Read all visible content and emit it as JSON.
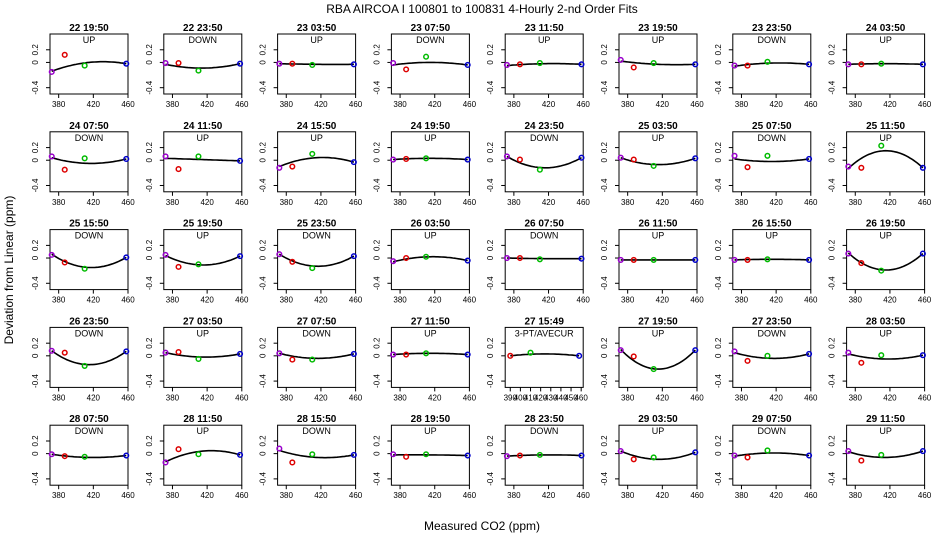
{
  "chart_data": {
    "type": "scatter",
    "title": "RBA   AIRCOA I   100801 to 100831   4-Hourly 2-nd Order Fits",
    "xlabel": "Measured CO2 (ppm)",
    "ylabel": "Deviation from Linear (ppm)",
    "xlim": [
      370,
      460
    ],
    "ylim": [
      -0.5,
      0.45
    ],
    "xticks": [
      380,
      420,
      460
    ],
    "yticks": [
      -0.4,
      0,
      0.2
    ],
    "ytick_labels": [
      "-0.4",
      "0",
      "0.2"
    ],
    "marker_colors": [
      "#9900cc",
      "#dd0000",
      "#00bb00",
      "#0000cc"
    ],
    "panels": [
      {
        "title": "22 19:50",
        "label": "UP",
        "x": [
          372,
          387,
          410,
          458
        ],
        "y": [
          -0.15,
          0.12,
          -0.05,
          -0.02
        ],
        "curve": [
          -0.14,
          0.0,
          -0.02
        ]
      },
      {
        "title": "22 23:50",
        "label": "DOWN",
        "x": [
          372,
          387,
          410,
          458
        ],
        "y": [
          -0.01,
          -0.01,
          -0.13,
          -0.02
        ],
        "curve": [
          -0.03,
          -0.09,
          -0.02
        ]
      },
      {
        "title": "23 03:50",
        "label": "UP",
        "x": [
          372,
          387,
          410,
          458
        ],
        "y": [
          -0.02,
          -0.02,
          -0.04,
          -0.03
        ],
        "curve": [
          -0.02,
          -0.03,
          -0.03
        ]
      },
      {
        "title": "23 07:50",
        "label": "DOWN",
        "x": [
          372,
          387,
          410,
          458
        ],
        "y": [
          -0.01,
          -0.11,
          0.09,
          -0.04
        ],
        "curve": [
          -0.04,
          0.0,
          -0.04
        ]
      },
      {
        "title": "23 11:50",
        "label": "UP",
        "x": [
          372,
          387,
          410,
          458
        ],
        "y": [
          -0.04,
          -0.03,
          -0.01,
          -0.03
        ],
        "curve": [
          -0.05,
          -0.02,
          -0.03
        ]
      },
      {
        "title": "23 19:50",
        "label": "UP",
        "x": [
          372,
          387,
          410,
          458
        ],
        "y": [
          0.04,
          -0.08,
          -0.01,
          -0.03
        ],
        "curve": [
          0.02,
          -0.03,
          -0.03
        ]
      },
      {
        "title": "23 23:50",
        "label": "DOWN",
        "x": [
          372,
          387,
          410,
          458
        ],
        "y": [
          -0.05,
          -0.05,
          0.01,
          -0.03
        ],
        "curve": [
          -0.06,
          -0.01,
          -0.03
        ]
      },
      {
        "title": "24 03:50",
        "label": "UP",
        "x": [
          372,
          387,
          410,
          458
        ],
        "y": [
          -0.03,
          -0.03,
          -0.02,
          -0.03
        ],
        "curve": [
          -0.03,
          -0.02,
          -0.03
        ]
      },
      {
        "title": "24 07:50",
        "label": "DOWN",
        "x": [
          372,
          387,
          410,
          458
        ],
        "y": [
          0.06,
          -0.15,
          0.03,
          0.02
        ],
        "curve": [
          0.04,
          -0.05,
          0.02
        ]
      },
      {
        "title": "24 11:50",
        "label": "UP",
        "x": [
          372,
          387,
          410,
          458
        ],
        "y": [
          0.06,
          -0.14,
          0.06,
          -0.01
        ],
        "curve": [
          0.03,
          0.01,
          -0.01
        ]
      },
      {
        "title": "24 15:50",
        "label": "UP",
        "x": [
          372,
          387,
          410,
          458
        ],
        "y": [
          -0.12,
          -0.1,
          0.1,
          -0.03
        ],
        "curve": [
          -0.1,
          0.04,
          -0.03
        ]
      },
      {
        "title": "24 19:50",
        "label": "UP",
        "x": [
          372,
          387,
          410,
          458
        ],
        "y": [
          0.01,
          0.02,
          0.03,
          0.01
        ],
        "curve": [
          0.01,
          0.03,
          0.01
        ]
      },
      {
        "title": "24 23:50",
        "label": "DOWN",
        "x": [
          372,
          387,
          410,
          458
        ],
        "y": [
          0.06,
          0.01,
          -0.15,
          0.04
        ],
        "curve": [
          0.06,
          -0.12,
          0.04
        ]
      },
      {
        "title": "25 03:50",
        "label": "UP",
        "x": [
          372,
          387,
          410,
          458
        ],
        "y": [
          0.04,
          0.01,
          -0.09,
          0.03
        ],
        "curve": [
          0.04,
          -0.07,
          0.03
        ]
      },
      {
        "title": "25 07:50",
        "label": "DOWN",
        "x": [
          372,
          387,
          410,
          458
        ],
        "y": [
          0.07,
          -0.11,
          0.07,
          0.02
        ],
        "curve": [
          0.02,
          -0.02,
          0.02
        ]
      },
      {
        "title": "25 11:50",
        "label": "UP",
        "x": [
          372,
          387,
          410,
          458
        ],
        "y": [
          -0.1,
          -0.12,
          0.23,
          -0.12
        ],
        "curve": [
          -0.13,
          0.15,
          -0.12
        ]
      },
      {
        "title": "25 15:50",
        "label": "DOWN",
        "x": [
          372,
          387,
          410,
          458
        ],
        "y": [
          0.05,
          -0.07,
          -0.17,
          0.01
        ],
        "curve": [
          0.06,
          -0.15,
          0.01
        ]
      },
      {
        "title": "25 19:50",
        "label": "UP",
        "x": [
          372,
          387,
          410,
          458
        ],
        "y": [
          0.05,
          -0.14,
          -0.1,
          0.03
        ],
        "curve": [
          0.04,
          -0.11,
          0.03
        ]
      },
      {
        "title": "25 23:50",
        "label": "DOWN",
        "x": [
          372,
          387,
          410,
          458
        ],
        "y": [
          0.06,
          -0.06,
          -0.16,
          0.03
        ],
        "curve": [
          0.06,
          -0.13,
          0.03
        ]
      },
      {
        "title": "26 03:50",
        "label": "UP",
        "x": [
          372,
          387,
          410,
          458
        ],
        "y": [
          -0.05,
          0.0,
          0.02,
          -0.04
        ],
        "curve": [
          -0.06,
          0.02,
          -0.04
        ]
      },
      {
        "title": "26 07:50",
        "label": "DOWN",
        "x": [
          372,
          387,
          410,
          458
        ],
        "y": [
          0.0,
          0.0,
          -0.02,
          -0.01
        ],
        "curve": [
          0.0,
          -0.01,
          -0.01
        ]
      },
      {
        "title": "26 11:50",
        "label": "UP",
        "x": [
          372,
          387,
          410,
          458
        ],
        "y": [
          -0.03,
          -0.03,
          -0.03,
          -0.03
        ],
        "curve": [
          -0.03,
          -0.03,
          -0.03
        ]
      },
      {
        "title": "26 15:50",
        "label": "UP",
        "x": [
          372,
          387,
          410,
          458
        ],
        "y": [
          -0.03,
          -0.03,
          -0.02,
          -0.03
        ],
        "curve": [
          -0.03,
          -0.02,
          -0.03
        ]
      },
      {
        "title": "26 19:50",
        "label": "UP",
        "x": [
          372,
          387,
          410,
          458
        ],
        "y": [
          0.07,
          -0.08,
          -0.2,
          0.07
        ],
        "curve": [
          0.08,
          -0.19,
          0.07
        ]
      },
      {
        "title": "26 23:50",
        "label": "DOWN",
        "x": [
          372,
          387,
          410,
          458
        ],
        "y": [
          0.08,
          0.05,
          -0.16,
          0.07
        ],
        "curve": [
          0.08,
          -0.14,
          0.07
        ]
      },
      {
        "title": "27 03:50",
        "label": "UP",
        "x": [
          372,
          387,
          410,
          458
        ],
        "y": [
          0.05,
          0.06,
          -0.05,
          0.03
        ],
        "curve": [
          0.05,
          -0.02,
          0.03
        ]
      },
      {
        "title": "27 07:50",
        "label": "DOWN",
        "x": [
          372,
          387,
          410,
          458
        ],
        "y": [
          0.04,
          -0.06,
          -0.06,
          0.03
        ],
        "curve": [
          0.04,
          -0.04,
          0.03
        ]
      },
      {
        "title": "27 11:50",
        "label": "UP",
        "x": [
          372,
          387,
          410,
          458
        ],
        "y": [
          0.02,
          0.02,
          0.04,
          0.02
        ],
        "curve": [
          0.02,
          0.04,
          0.02
        ]
      },
      {
        "title": "27 15:49",
        "label": "3-PT/AVECUR",
        "x": [
          390,
          410,
          458
        ],
        "y": [
          0.0,
          0.05,
          0.0
        ],
        "curve": [
          0.0,
          0.03,
          0.0
        ],
        "xlim": [
          385,
          462
        ],
        "xticks": [
          390,
          400,
          410,
          420,
          430,
          440,
          450,
          460
        ]
      },
      {
        "title": "27 19:50",
        "label": "UP",
        "x": [
          372,
          387,
          410,
          458
        ],
        "y": [
          0.09,
          -0.01,
          -0.21,
          0.09
        ],
        "curve": [
          0.1,
          -0.21,
          0.09
        ]
      },
      {
        "title": "27 23:50",
        "label": "DOWN",
        "x": [
          372,
          387,
          410,
          458
        ],
        "y": [
          0.07,
          -0.08,
          0.0,
          0.03
        ],
        "curve": [
          0.05,
          -0.04,
          0.03
        ]
      },
      {
        "title": "28 03:50",
        "label": "UP",
        "x": [
          372,
          387,
          410,
          458
        ],
        "y": [
          0.05,
          -0.11,
          0.01,
          0.01
        ],
        "curve": [
          0.03,
          -0.05,
          0.01
        ]
      },
      {
        "title": "28 07:50",
        "label": "DOWN",
        "x": [
          372,
          387,
          410,
          458
        ],
        "y": [
          -0.01,
          -0.04,
          -0.05,
          -0.03
        ],
        "curve": [
          -0.01,
          -0.06,
          -0.03
        ]
      },
      {
        "title": "28 11:50",
        "label": "UP",
        "x": [
          372,
          387,
          410,
          458
        ],
        "y": [
          -0.14,
          0.07,
          -0.01,
          -0.02
        ],
        "curve": [
          -0.13,
          0.04,
          -0.02
        ]
      },
      {
        "title": "28 15:50",
        "label": "DOWN",
        "x": [
          372,
          387,
          410,
          458
        ],
        "y": [
          0.08,
          -0.14,
          -0.01,
          -0.02
        ],
        "curve": [
          0.05,
          -0.06,
          -0.02
        ]
      },
      {
        "title": "28 19:50",
        "label": "UP",
        "x": [
          372,
          387,
          410,
          458
        ],
        "y": [
          -0.01,
          -0.05,
          -0.01,
          -0.03
        ],
        "curve": [
          -0.02,
          -0.02,
          -0.03
        ]
      },
      {
        "title": "28 23:50",
        "label": "DOWN",
        "x": [
          372,
          387,
          410,
          458
        ],
        "y": [
          -0.04,
          -0.03,
          -0.02,
          -0.03
        ],
        "curve": [
          -0.04,
          -0.02,
          -0.03
        ]
      },
      {
        "title": "29 03:50",
        "label": "UP",
        "x": [
          372,
          387,
          410,
          458
        ],
        "y": [
          0.04,
          -0.09,
          -0.06,
          0.02
        ],
        "curve": [
          0.04,
          -0.09,
          0.02
        ]
      },
      {
        "title": "29 07:50",
        "label": "DOWN",
        "x": [
          372,
          387,
          410,
          458
        ],
        "y": [
          -0.03,
          -0.06,
          0.05,
          -0.03
        ],
        "curve": [
          -0.04,
          0.01,
          -0.03
        ]
      },
      {
        "title": "29 11:50",
        "label": "UP",
        "x": [
          372,
          387,
          410,
          458
        ],
        "y": [
          0.04,
          -0.11,
          -0.02,
          0.04
        ],
        "curve": [
          0.03,
          -0.06,
          0.04
        ]
      }
    ]
  }
}
